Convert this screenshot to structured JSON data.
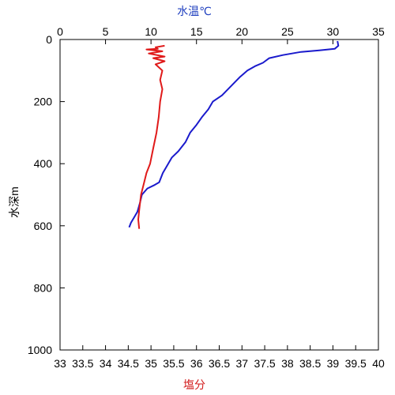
{
  "chart_data": {
    "type": "line",
    "top_axis": {
      "label": "水温℃",
      "color": "#1f3fbf",
      "range": [
        0,
        35
      ],
      "ticks": [
        0,
        5,
        10,
        15,
        20,
        25,
        30,
        35
      ]
    },
    "bottom_axis": {
      "label": "塩分",
      "color": "#d21a1a",
      "range": [
        33,
        40
      ],
      "ticks": [
        "33",
        "33.5",
        "34",
        "34.5",
        "35",
        "35.5",
        "36",
        "36.5",
        "37",
        "37.5",
        "38",
        "38.5",
        "39",
        "39.5",
        "40"
      ]
    },
    "left_axis": {
      "label": "水深m",
      "range": [
        0,
        1000
      ],
      "inverted": true,
      "ticks": [
        0,
        200,
        400,
        600,
        800,
        1000
      ]
    },
    "series": [
      {
        "axis": "top",
        "color": "#1a1acc",
        "points": [
          [
            30.5,
            5
          ],
          [
            30.6,
            20
          ],
          [
            30.2,
            30
          ],
          [
            28.5,
            35
          ],
          [
            26.5,
            40
          ],
          [
            24.5,
            50
          ],
          [
            23,
            60
          ],
          [
            22.3,
            75
          ],
          [
            21.5,
            85
          ],
          [
            20.6,
            100
          ],
          [
            19.8,
            120
          ],
          [
            18.8,
            150
          ],
          [
            17.8,
            180
          ],
          [
            16.8,
            200
          ],
          [
            16.3,
            225
          ],
          [
            15.6,
            250
          ],
          [
            15,
            275
          ],
          [
            14.3,
            300
          ],
          [
            13.8,
            330
          ],
          [
            13,
            360
          ],
          [
            12.3,
            380
          ],
          [
            11.7,
            410
          ],
          [
            11.3,
            430
          ],
          [
            10.9,
            460
          ],
          [
            10.3,
            470
          ],
          [
            9.6,
            480
          ],
          [
            9,
            500
          ],
          [
            8.8,
            525
          ],
          [
            8.5,
            555
          ],
          [
            8.1,
            575
          ],
          [
            7.8,
            590
          ],
          [
            7.6,
            605
          ]
        ]
      },
      {
        "axis": "bottom",
        "color": "#e01a1a",
        "points": [
          [
            35.3,
            20
          ],
          [
            35.1,
            25
          ],
          [
            35.15,
            30
          ],
          [
            34.9,
            32
          ],
          [
            35.25,
            38
          ],
          [
            34.95,
            45
          ],
          [
            35.3,
            55
          ],
          [
            35.05,
            60
          ],
          [
            35.3,
            70
          ],
          [
            35.1,
            80
          ],
          [
            35.25,
            100
          ],
          [
            35.2,
            130
          ],
          [
            35.25,
            160
          ],
          [
            35.2,
            200
          ],
          [
            35.17,
            250
          ],
          [
            35.12,
            300
          ],
          [
            35.05,
            350
          ],
          [
            34.98,
            400
          ],
          [
            34.9,
            430
          ],
          [
            34.85,
            460
          ],
          [
            34.78,
            500
          ],
          [
            34.74,
            550
          ],
          [
            34.72,
            580
          ],
          [
            34.74,
            610
          ]
        ]
      }
    ]
  }
}
